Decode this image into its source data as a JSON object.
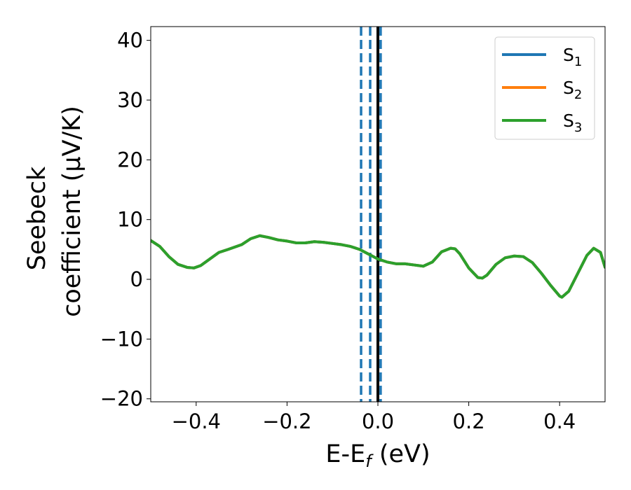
{
  "chart_data": {
    "type": "line",
    "xlabel": "E-E",
    "xlabel_sub": "f",
    "xlabel_unit": " (eV)",
    "ylabel_line1": "Seebeck",
    "ylabel_line2": "coefficient  (μV/K)",
    "xlim": [
      -0.5,
      0.5
    ],
    "ylim": [
      -20.5,
      42.3
    ],
    "x_ticks": [
      -0.4,
      -0.2,
      0.0,
      0.2,
      0.4
    ],
    "x_tick_labels": [
      "−0.4",
      "−0.2",
      "0.0",
      "0.2",
      "0.4"
    ],
    "y_ticks": [
      -20,
      -10,
      0,
      10,
      20,
      30,
      40
    ],
    "y_tick_labels": [
      "−20",
      "−10",
      "0",
      "10",
      "20",
      "30",
      "40"
    ],
    "grid": false,
    "legend_position": "top-right",
    "vertical_lines": [
      {
        "x": -0.037,
        "style": "dashed",
        "color": "#1f77b4"
      },
      {
        "x": -0.017,
        "style": "dashed",
        "color": "#1f77b4"
      },
      {
        "x": 0.006,
        "style": "dashed",
        "color": "#1f77b4"
      },
      {
        "x": 0.0,
        "style": "solid",
        "color": "#000000"
      }
    ],
    "series": [
      {
        "name": "S",
        "sub": "1",
        "color": "#1f77b4",
        "x": [
          -0.5,
          -0.48,
          -0.46,
          -0.44,
          -0.42,
          -0.405,
          -0.39,
          -0.37,
          -0.35,
          -0.33,
          -0.3,
          -0.28,
          -0.26,
          -0.24,
          -0.22,
          -0.2,
          -0.18,
          -0.16,
          -0.14,
          -0.12,
          -0.1,
          -0.08,
          -0.06,
          -0.04,
          -0.02,
          0.0,
          0.02,
          0.04,
          0.06,
          0.08,
          0.1,
          0.12,
          0.14,
          0.16,
          0.17,
          0.18,
          0.2,
          0.22,
          0.23,
          0.24,
          0.26,
          0.28,
          0.3,
          0.32,
          0.34,
          0.36,
          0.38,
          0.4,
          0.405,
          0.42,
          0.44,
          0.46,
          0.475,
          0.49,
          0.5
        ],
        "y": [
          6.5,
          5.5,
          3.8,
          2.5,
          2.0,
          1.9,
          2.3,
          3.4,
          4.5,
          5.0,
          5.8,
          6.8,
          7.3,
          7.0,
          6.6,
          6.4,
          6.1,
          6.1,
          6.3,
          6.2,
          6.0,
          5.8,
          5.5,
          5.0,
          4.2,
          3.4,
          2.9,
          2.6,
          2.6,
          2.4,
          2.2,
          2.9,
          4.6,
          5.2,
          5.1,
          4.3,
          1.9,
          0.3,
          0.2,
          0.7,
          2.5,
          3.6,
          3.9,
          3.8,
          2.8,
          1.0,
          -1.0,
          -2.8,
          -3.0,
          -2.0,
          1.0,
          4.0,
          5.2,
          4.5,
          2.0
        ]
      },
      {
        "name": "S",
        "sub": "2",
        "color": "#ff7f0e",
        "x": [
          -0.5,
          -0.48,
          -0.46,
          -0.44,
          -0.42,
          -0.405,
          -0.39,
          -0.37,
          -0.35,
          -0.33,
          -0.3,
          -0.28,
          -0.26,
          -0.24,
          -0.22,
          -0.2,
          -0.18,
          -0.16,
          -0.14,
          -0.12,
          -0.1,
          -0.08,
          -0.06,
          -0.04,
          -0.02,
          0.0,
          0.02,
          0.04,
          0.06,
          0.08,
          0.1,
          0.12,
          0.14,
          0.16,
          0.17,
          0.18,
          0.2,
          0.22,
          0.23,
          0.24,
          0.26,
          0.28,
          0.3,
          0.32,
          0.34,
          0.36,
          0.38,
          0.4,
          0.405,
          0.42,
          0.44,
          0.46,
          0.475,
          0.49,
          0.5
        ],
        "y": [
          6.5,
          5.5,
          3.8,
          2.5,
          2.0,
          1.9,
          2.3,
          3.4,
          4.5,
          5.0,
          5.8,
          6.8,
          7.3,
          7.0,
          6.6,
          6.4,
          6.1,
          6.1,
          6.3,
          6.2,
          6.0,
          5.8,
          5.5,
          5.0,
          4.2,
          3.4,
          2.9,
          2.6,
          2.6,
          2.4,
          2.2,
          2.9,
          4.6,
          5.2,
          5.1,
          4.3,
          1.9,
          0.3,
          0.2,
          0.7,
          2.5,
          3.6,
          3.9,
          3.8,
          2.8,
          1.0,
          -1.0,
          -2.8,
          -3.0,
          -2.0,
          1.0,
          4.0,
          5.2,
          4.5,
          2.0
        ]
      },
      {
        "name": "S",
        "sub": "3",
        "color": "#2ca02c",
        "x": [
          -0.5,
          -0.48,
          -0.46,
          -0.44,
          -0.42,
          -0.405,
          -0.39,
          -0.37,
          -0.35,
          -0.33,
          -0.3,
          -0.28,
          -0.26,
          -0.24,
          -0.22,
          -0.2,
          -0.18,
          -0.16,
          -0.14,
          -0.12,
          -0.1,
          -0.08,
          -0.06,
          -0.04,
          -0.02,
          0.0,
          0.02,
          0.04,
          0.06,
          0.08,
          0.1,
          0.12,
          0.14,
          0.16,
          0.17,
          0.18,
          0.2,
          0.22,
          0.23,
          0.24,
          0.26,
          0.28,
          0.3,
          0.32,
          0.34,
          0.36,
          0.38,
          0.4,
          0.405,
          0.42,
          0.44,
          0.46,
          0.475,
          0.49,
          0.5
        ],
        "y": [
          6.5,
          5.5,
          3.8,
          2.5,
          2.0,
          1.9,
          2.3,
          3.4,
          4.5,
          5.0,
          5.8,
          6.8,
          7.3,
          7.0,
          6.6,
          6.4,
          6.1,
          6.1,
          6.3,
          6.2,
          6.0,
          5.8,
          5.5,
          5.0,
          4.2,
          3.4,
          2.9,
          2.6,
          2.6,
          2.4,
          2.2,
          2.9,
          4.6,
          5.2,
          5.1,
          4.3,
          1.9,
          0.3,
          0.2,
          0.7,
          2.5,
          3.6,
          3.9,
          3.8,
          2.8,
          1.0,
          -1.0,
          -2.8,
          -3.0,
          -2.0,
          1.0,
          4.0,
          5.2,
          4.5,
          2.0
        ]
      }
    ]
  }
}
